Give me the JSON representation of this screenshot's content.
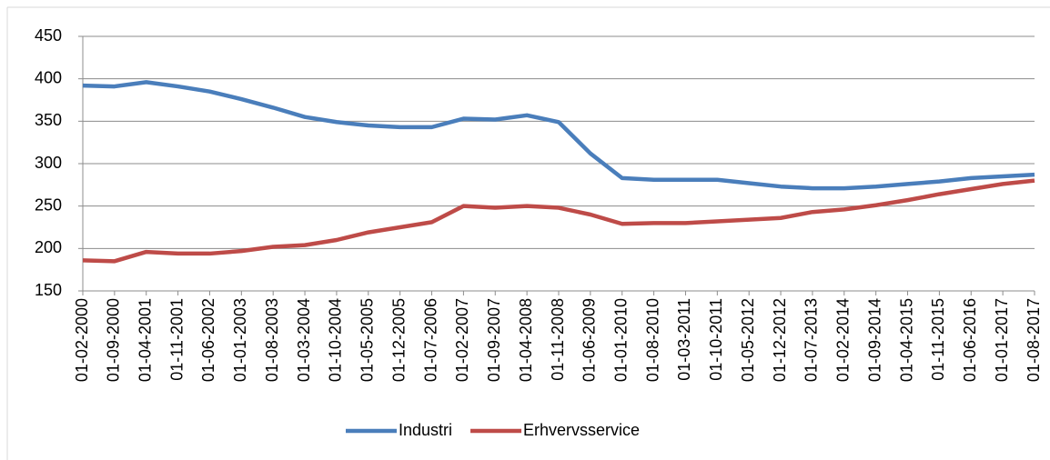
{
  "chart_data": {
    "type": "line",
    "categories": [
      "01-02-2000",
      "01-09-2000",
      "01-04-2001",
      "01-11-2001",
      "01-06-2002",
      "01-01-2003",
      "01-08-2003",
      "01-03-2004",
      "01-10-2004",
      "01-05-2005",
      "01-12-2005",
      "01-07-2006",
      "01-02-2007",
      "01-09-2007",
      "01-04-2008",
      "01-11-2008",
      "01-06-2009",
      "01-01-2010",
      "01-08-2010",
      "01-03-2011",
      "01-10-2011",
      "01-05-2012",
      "01-12-2012",
      "01-07-2013",
      "01-02-2014",
      "01-09-2014",
      "01-04-2015",
      "01-11-2015",
      "01-06-2016",
      "01-01-2017",
      "01-08-2017"
    ],
    "series": [
      {
        "name": "Industri",
        "color": "#4a7ebb",
        "values": [
          392,
          391,
          396,
          391,
          385,
          376,
          366,
          355,
          349,
          345,
          343,
          343,
          353,
          352,
          357,
          349,
          312,
          283,
          281,
          281,
          281,
          277,
          273,
          271,
          271,
          273,
          276,
          279,
          283,
          285,
          287
        ]
      },
      {
        "name": "Erhvervsservice",
        "color": "#be4b48",
        "values": [
          186,
          185,
          196,
          194,
          194,
          197,
          202,
          204,
          210,
          219,
          225,
          231,
          250,
          248,
          250,
          248,
          240,
          229,
          230,
          230,
          232,
          234,
          236,
          243,
          246,
          251,
          257,
          264,
          270,
          276,
          280
        ]
      }
    ],
    "ylim": [
      150,
      450
    ],
    "yticks": [
      150,
      200,
      250,
      300,
      350,
      400,
      450
    ],
    "grid": true,
    "legend": "bottom"
  }
}
